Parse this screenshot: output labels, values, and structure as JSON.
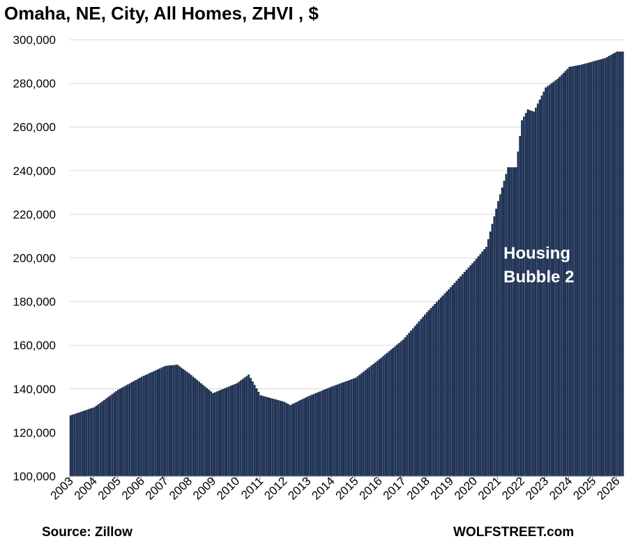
{
  "title": "Omaha, NE, City, All Homes, ZHVI , $",
  "source": "Source: Zillow",
  "brand": "WOLFSTREET.com",
  "colors": {
    "bar": "#1f3864",
    "bar_edge": "#0a1220",
    "grid": "#d9d9d9",
    "annotation": "#ffffff"
  },
  "chart_data": {
    "type": "bar",
    "title": "Omaha, NE, City, All Homes, ZHVI , $",
    "xlabel": "",
    "ylabel": "",
    "ylim": [
      100000,
      300000
    ],
    "yticks": [
      100000,
      120000,
      140000,
      160000,
      180000,
      200000,
      220000,
      240000,
      260000,
      280000,
      300000
    ],
    "ytick_labels": [
      "100,000",
      "120,000",
      "140,000",
      "160,000",
      "180,000",
      "200,000",
      "220,000",
      "240,000",
      "260,000",
      "280,000",
      "300,000"
    ],
    "xtick_labels": [
      "2003",
      "2004",
      "2005",
      "2006",
      "2007",
      "2008",
      "2009",
      "2010",
      "2011",
      "2012",
      "2013",
      "2014",
      "2015",
      "2016",
      "2017",
      "2018",
      "2019",
      "2020",
      "2021",
      "2022",
      "2023",
      "2024",
      "2025",
      "2026"
    ],
    "grid": true,
    "legend": "none",
    "frequency": "monthly",
    "anchors": [
      [
        "2003-01",
        127800
      ],
      [
        "2004-01",
        131500
      ],
      [
        "2005-01",
        139500
      ],
      [
        "2006-01",
        145500
      ],
      [
        "2007-01",
        150500
      ],
      [
        "2007-07",
        151000
      ],
      [
        "2008-01",
        147000
      ],
      [
        "2009-01",
        138000
      ],
      [
        "2010-01",
        142500
      ],
      [
        "2010-07",
        146500
      ],
      [
        "2011-01",
        137000
      ],
      [
        "2012-01",
        134000
      ],
      [
        "2012-04",
        132500
      ],
      [
        "2013-01",
        136500
      ],
      [
        "2014-01",
        141000
      ],
      [
        "2015-01",
        145000
      ],
      [
        "2016-01",
        153500
      ],
      [
        "2017-01",
        162500
      ],
      [
        "2018-01",
        175000
      ],
      [
        "2019-01",
        186500
      ],
      [
        "2020-01",
        198500
      ],
      [
        "2020-07",
        205000
      ],
      [
        "2021-01",
        226000
      ],
      [
        "2021-06",
        241500
      ],
      [
        "2021-10",
        241500
      ],
      [
        "2022-01",
        263000
      ],
      [
        "2022-04",
        268000
      ],
      [
        "2022-07",
        267000
      ],
      [
        "2023-01",
        278000
      ],
      [
        "2023-07",
        282000
      ],
      [
        "2024-01",
        287500
      ],
      [
        "2024-07",
        288500
      ],
      [
        "2025-01",
        290000
      ],
      [
        "2025-07",
        291500
      ],
      [
        "2026-01",
        294500
      ],
      [
        "2026-04",
        294500
      ]
    ],
    "annotations": [
      {
        "text_line1": "Housing",
        "text_line2": "Bubble 2"
      }
    ]
  }
}
